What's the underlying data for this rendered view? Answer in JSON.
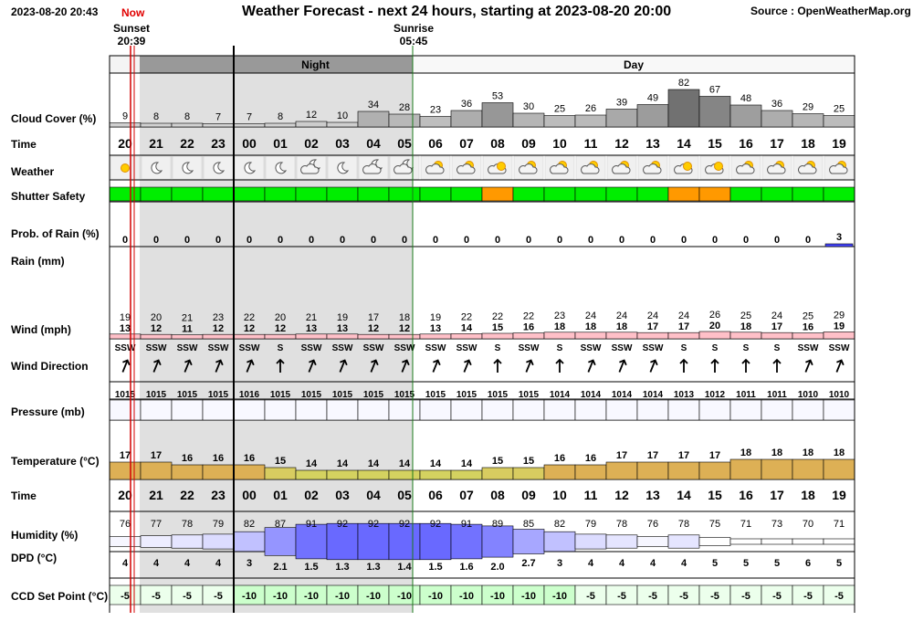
{
  "header": {
    "datetime": "2023-08-20 20:43",
    "now_label": "Now",
    "title": "Weather Forecast - next 24 hours, starting at 2023-08-20 20:00",
    "source": "Source : OpenWeatherMap.org",
    "sunset_label": "Sunset",
    "sunset_time": "20:39",
    "sunrise_label": "Sunrise",
    "sunrise_time": "05:45"
  },
  "bands": {
    "night": "Night",
    "day": "Day"
  },
  "labels": {
    "cloud": "Cloud Cover (%)",
    "time": "Time",
    "weather": "Weather",
    "shutter": "Shutter Safety",
    "prob": "Prob. of Rain (%)",
    "rain": "Rain (mm)",
    "wind": "Wind (mph)",
    "wind_dir": "Wind Direction",
    "pressure": "Pressure (mb)",
    "temperature": "Temperature (°C)",
    "time2": "Time",
    "humidity": "Humidity (%)",
    "dpd": "DPD (°C)",
    "ccd": "CCD Set Point (°C)"
  },
  "hours": [
    "20",
    "21",
    "22",
    "23",
    "00",
    "01",
    "02",
    "03",
    "04",
    "05",
    "06",
    "07",
    "08",
    "09",
    "10",
    "11",
    "12",
    "13",
    "14",
    "15",
    "16",
    "17",
    "18",
    "19"
  ],
  "cloud_cover": [
    9,
    8,
    8,
    7,
    7,
    8,
    12,
    10,
    34,
    28,
    23,
    36,
    53,
    30,
    25,
    26,
    39,
    49,
    82,
    67,
    48,
    36,
    29,
    25
  ],
  "weather_icons": [
    "sun-icon",
    "moon-icon",
    "moon-icon",
    "moon-icon",
    "moon-icon",
    "moon-icon",
    "moon-cloud-icon",
    "moon-icon",
    "moon-cloud-icon",
    "moon-cloud-icon",
    "sun-cloud-icon",
    "sun-cloud-icon",
    "cloud-sun-icon",
    "sun-cloud-icon",
    "sun-cloud-icon",
    "sun-cloud-icon",
    "sun-cloud-icon",
    "sun-cloud-icon",
    "cloud-sun-icon",
    "cloud-sun-icon",
    "sun-cloud-icon",
    "sun-cloud-icon",
    "sun-cloud-icon",
    "sun-cloud-icon"
  ],
  "shutter_safety": [
    "green",
    "green",
    "green",
    "green",
    "green",
    "green",
    "green",
    "green",
    "green",
    "green",
    "green",
    "green",
    "orange",
    "green",
    "green",
    "green",
    "green",
    "green",
    "orange",
    "orange",
    "green",
    "green",
    "green",
    "green"
  ],
  "shutter_colors": {
    "green": "#00ee00",
    "orange": "#ff9900"
  },
  "prob_rain": [
    0,
    0,
    0,
    0,
    0,
    0,
    0,
    0,
    0,
    0,
    0,
    0,
    0,
    0,
    0,
    0,
    0,
    0,
    0,
    0,
    0,
    0,
    0,
    3
  ],
  "wind_gust": [
    19,
    20,
    21,
    23,
    22,
    20,
    21,
    19,
    17,
    18,
    19,
    22,
    22,
    22,
    23,
    24,
    24,
    24,
    24,
    26,
    25,
    24,
    25,
    29
  ],
  "wind_speed": [
    13,
    12,
    11,
    12,
    12,
    12,
    13,
    13,
    12,
    12,
    13,
    14,
    15,
    16,
    18,
    18,
    18,
    17,
    17,
    20,
    18,
    17,
    16,
    19
  ],
  "wind_dir": [
    "SSW",
    "SSW",
    "SSW",
    "SSW",
    "SSW",
    "S",
    "SSW",
    "SSW",
    "SSW",
    "SSW",
    "SSW",
    "SSW",
    "S",
    "SSW",
    "S",
    "SSW",
    "SSW",
    "SSW",
    "S",
    "S",
    "S",
    "S",
    "SSW",
    "SSW"
  ],
  "wind_dir_deg": [
    202,
    202,
    202,
    202,
    202,
    180,
    202,
    202,
    202,
    202,
    202,
    202,
    180,
    202,
    180,
    202,
    202,
    202,
    180,
    180,
    180,
    180,
    202,
    202
  ],
  "pressure": [
    1015,
    1015,
    1015,
    1015,
    1016,
    1015,
    1015,
    1015,
    1015,
    1015,
    1015,
    1015,
    1015,
    1015,
    1014,
    1014,
    1014,
    1014,
    1013,
    1012,
    1011,
    1011,
    1010,
    1010
  ],
  "temperature": [
    17,
    17,
    16,
    16,
    16,
    15,
    14,
    14,
    14,
    14,
    14,
    14,
    15,
    15,
    16,
    16,
    17,
    17,
    17,
    17,
    18,
    18,
    18,
    18
  ],
  "humidity": [
    76,
    77,
    78,
    79,
    82,
    87,
    91,
    92,
    92,
    92,
    92,
    91,
    89,
    85,
    82,
    79,
    78,
    76,
    78,
    75,
    71,
    73,
    70,
    71
  ],
  "dpd": [
    "4",
    "4",
    "4",
    "4",
    "3",
    "2.1",
    "1.5",
    "1.3",
    "1.3",
    "1.4",
    "1.5",
    "1.6",
    "2.0",
    "2.7",
    "3",
    "4",
    "4",
    "4",
    "4",
    "5",
    "5",
    "5",
    "6",
    "5"
  ],
  "ccd_set_point": [
    -5,
    -5,
    -5,
    -5,
    -10,
    -10,
    -10,
    -10,
    -10,
    -10,
    -10,
    -10,
    -10,
    -10,
    -10,
    -5,
    -5,
    -5,
    -5,
    -5,
    -5,
    -5,
    -5,
    -5
  ]
}
